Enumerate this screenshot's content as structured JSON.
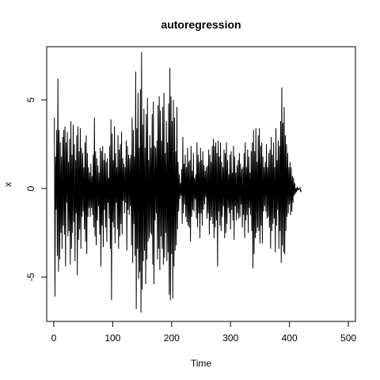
{
  "chart_data": {
    "type": "line",
    "title": "autoregression",
    "xlabel": "Time",
    "ylabel": "x",
    "xlim": [
      -12,
      512
    ],
    "ylim": [
      -7.5,
      8.0
    ],
    "grid": false,
    "legend": "none",
    "line_color": "#000000",
    "x_ticks": [
      0,
      100,
      200,
      300,
      400,
      500
    ],
    "x_tick_labels": [
      "0",
      "100",
      "200",
      "300",
      "400",
      "500"
    ],
    "y_ticks": [
      -5,
      0,
      5
    ],
    "y_tick_labels": [
      "-5",
      "0",
      "5"
    ],
    "series": [
      {
        "x_start": 1,
        "x_step": 1,
        "values": [
          4.0,
          -6.1,
          1.8,
          -1.2,
          3.3,
          -3.8,
          6.2,
          -4.7,
          3.3,
          -4.0,
          2.6,
          -2.5,
          1.8,
          -3.4,
          2.9,
          -2.1,
          3.3,
          -2.6,
          3.5,
          -4.4,
          2.6,
          -0.8,
          3.2,
          -2.7,
          1.5,
          -2.4,
          2.8,
          -4.3,
          3.8,
          -3.4,
          1.9,
          -2.5,
          3.6,
          -1.9,
          2.5,
          -4.1,
          1.6,
          -1.4,
          3.0,
          -4.9,
          3.5,
          -2.9,
          2.1,
          -2.3,
          3.4,
          -3.4,
          2.3,
          -1.6,
          2.0,
          -1.3,
          1.2,
          -2.3,
          2.6,
          -3.0,
          3.0,
          -3.7,
          2.0,
          -1.6,
          1.2,
          -1.1,
          0.9,
          -1.6,
          1.4,
          -1.1,
          0.7,
          -1.5,
          1.9,
          -2.2,
          4.0,
          -2.7,
          2.1,
          -3.2,
          1.7,
          -1.8,
          1.3,
          -1.0,
          0.9,
          -2.6,
          2.3,
          -4.4,
          2.1,
          -2.1,
          2.4,
          -3.3,
          1.6,
          -1.2,
          2.0,
          -2.2,
          1.5,
          -3.0,
          1.7,
          -0.8,
          0.6,
          -1.7,
          2.4,
          -3.4,
          3.9,
          -6.3,
          3.1,
          -1.9,
          1.6,
          -2.2,
          3.5,
          -3.1,
          2.0,
          -0.8,
          1.2,
          -2.3,
          3.0,
          -3.4,
          2.2,
          -2.7,
          2.5,
          -2.0,
          3.2,
          -2.6,
          1.7,
          -0.7,
          1.4,
          -1.4,
          1.2,
          -0.8,
          2.7,
          -3.5,
          2.4,
          -1.2,
          1.9,
          -1.5,
          1.7,
          -1.0,
          1.9,
          -3.2,
          4.0,
          -4.2,
          3.3,
          -2.0,
          1.8,
          -3.8,
          6.6,
          -6.8,
          3.4,
          -3.4,
          5.4,
          -5.1,
          2.3,
          -4.7,
          5.6,
          -7.0,
          7.7,
          -5.7,
          3.6,
          -4.1,
          4.5,
          -3.5,
          2.3,
          -5.4,
          4.2,
          -4.0,
          5.1,
          -3.0,
          1.6,
          -2.8,
          3.0,
          -2.5,
          2.3,
          -2.6,
          4.2,
          -4.3,
          4.9,
          -5.4,
          2.4,
          -1.8,
          2.3,
          -1.4,
          2.7,
          -4.0,
          4.7,
          -3.4,
          5.2,
          -4.6,
          4.4,
          -2.7,
          2.7,
          -3.4,
          4.6,
          -4.3,
          5.4,
          -3.9,
          2.0,
          -2.5,
          3.8,
          -4.1,
          2.6,
          -3.6,
          4.8,
          -6.0,
          6.8,
          -6.3,
          5.2,
          -3.7,
          3.8,
          -6.2,
          5.0,
          -4.4,
          4.0,
          -3.5,
          2.1,
          -3.2,
          4.6,
          -2.3,
          1.5,
          -1.3,
          0.8,
          -0.6,
          0.3,
          -0.4,
          1.1,
          -2.0,
          2.9,
          -1.4,
          1.4,
          -0.9,
          1.9,
          -1.6,
          1.2,
          -1.9,
          2.3,
          -2.1,
          1.5,
          -2.2,
          1.6,
          -3.0,
          2.4,
          -1.6,
          1.0,
          -1.2,
          2.0,
          -1.3,
          0.6,
          -0.6,
          0.8,
          -1.7,
          2.6,
          -2.2,
          1.9,
          -1.4,
          1.5,
          -2.8,
          2.3,
          -1.4,
          1.6,
          -2.1,
          2.1,
          -1.2,
          1.3,
          -0.9,
          1.0,
          -0.5,
          1.2,
          -1.7,
          1.3,
          -1.4,
          2.2,
          -2.6,
          1.9,
          -1.8,
          1.5,
          -1.6,
          2.4,
          -2.0,
          2.8,
          -2.8,
          2.4,
          -2.2,
          2.6,
          -1.8,
          2.0,
          -4.4,
          2.7,
          -1.3,
          1.8,
          -2.1,
          2.6,
          -2.4,
          1.5,
          -1.6,
          1.2,
          -1.0,
          2.2,
          -2.8,
          2.0,
          -2.5,
          2.6,
          -2.0,
          1.6,
          -1.1,
          0.8,
          -1.4,
          1.9,
          -2.3,
          2.1,
          -1.2,
          0.9,
          -1.8,
          2.4,
          -2.9,
          1.8,
          -1.0,
          0.9,
          -1.8,
          1.3,
          -1.4,
          1.6,
          -1.7,
          2.0,
          -1.6,
          1.4,
          -0.9,
          1.1,
          -2.2,
          1.2,
          -1.5,
          2.0,
          -2.8,
          2.6,
          -1.8,
          1.2,
          -1.5,
          2.2,
          -2.5,
          1.8,
          -1.1,
          0.9,
          -1.5,
          2.1,
          -2.4,
          2.6,
          -4.5,
          3.3,
          -3.7,
          2.1,
          -2.8,
          3.4,
          -2.5,
          1.5,
          -2.2,
          3.0,
          -2.4,
          3.4,
          -3.1,
          2.4,
          -2.1,
          2.6,
          -3.1,
          1.8,
          -1.3,
          1.2,
          -1.0,
          1.5,
          -1.3,
          2.5,
          -1.7,
          1.2,
          -1.6,
          2.0,
          -2.2,
          2.2,
          -3.4,
          2.9,
          -2.4,
          1.9,
          -2.0,
          2.6,
          -1.7,
          1.2,
          -3.6,
          3.4,
          -2.1,
          1.6,
          -1.2,
          2.7,
          -3.4,
          2.4,
          -2.4,
          3.8,
          -4.2,
          5.7,
          -3.2,
          3.7,
          -3.6,
          4.6,
          -3.7,
          3.0,
          -2.4,
          2.5,
          -1.6,
          2.0,
          -1.4,
          1.2,
          -0.9,
          1.5,
          -1.5,
          1.2,
          -1.3,
          0.7,
          -0.8,
          0.6,
          -0.4,
          0.3,
          -0.3,
          0.0,
          -0.2,
          0.1,
          -0.1,
          0.0,
          -0.05,
          0.0,
          0.05,
          -0.2,
          -0.1
        ]
      }
    ]
  }
}
